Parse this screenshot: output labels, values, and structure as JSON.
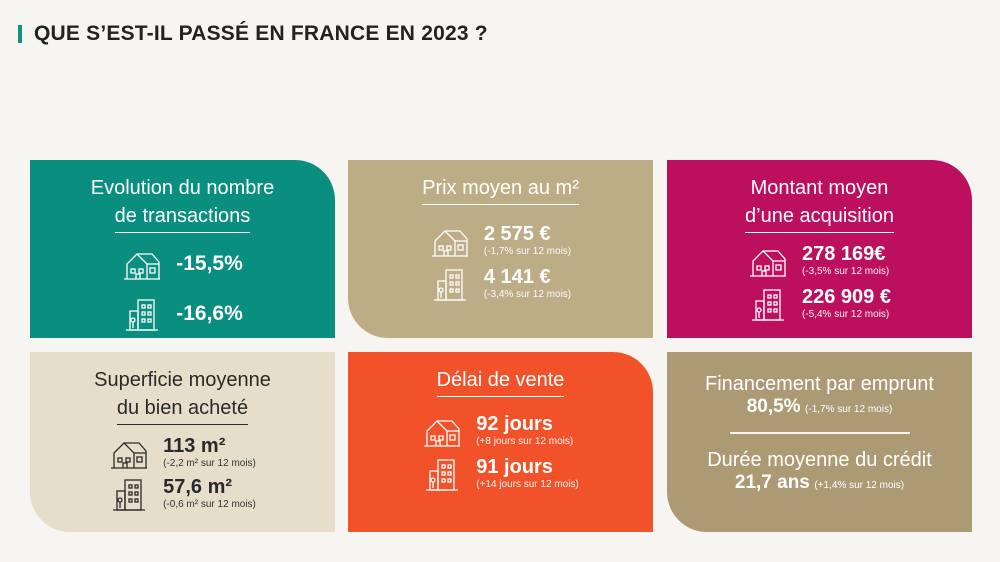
{
  "header": {
    "title": "QUE S’EST-IL PASSÉ EN FRANCE EN 2023 ?"
  },
  "transactions": {
    "title_line1": "Evolution du nombre",
    "title_line2": "de transactions",
    "house_value": "-15,5%",
    "apartment_value": "-16,6%"
  },
  "prix": {
    "title": "Prix moyen au m²",
    "house_value": "2 575 €",
    "house_change": "(-1,7% sur 12 mois)",
    "apartment_value": "4 141 €",
    "apartment_change": "(-3,4% sur 12 mois)"
  },
  "montant": {
    "title_line1": "Montant moyen",
    "title_line2": "d’une acquisition",
    "house_value": "278 169€",
    "house_change": "(-3,5% sur 12 mois)",
    "apartment_value": "226 909 €",
    "apartment_change": "(-5,4% sur 12 mois)"
  },
  "superficie": {
    "title_line1": "Superficie moyenne",
    "title_line2": "du bien acheté",
    "house_value": "113 m²",
    "house_change": "(-2,2 m² sur 12 mois)",
    "apartment_value": "57,6 m²",
    "apartment_change": "(-0,6 m² sur 12 mois)"
  },
  "delai": {
    "title": "Délai de vente",
    "house_value": "92 jours",
    "house_change": "(+8 jours sur 12 mois)",
    "apartment_value": "91 jours",
    "apartment_change": "(+14 jours sur 12 mois)"
  },
  "financement": {
    "title": "Financement par emprunt",
    "value": "80,5%",
    "change": "(-1,7% sur 12 mois)",
    "duration_title": "Durée moyenne du crédit",
    "duration_value": "21,7 ans",
    "duration_change": "(+1,4% sur 12 mois)"
  },
  "colors": {
    "teal": "#098e80",
    "beige": "#bdad86",
    "magenta": "#bc0f5e",
    "cream": "#e6decb",
    "orange": "#f15229",
    "taupe": "#ac9a75"
  },
  "icons": [
    "house-icon",
    "apartment-building-icon"
  ]
}
